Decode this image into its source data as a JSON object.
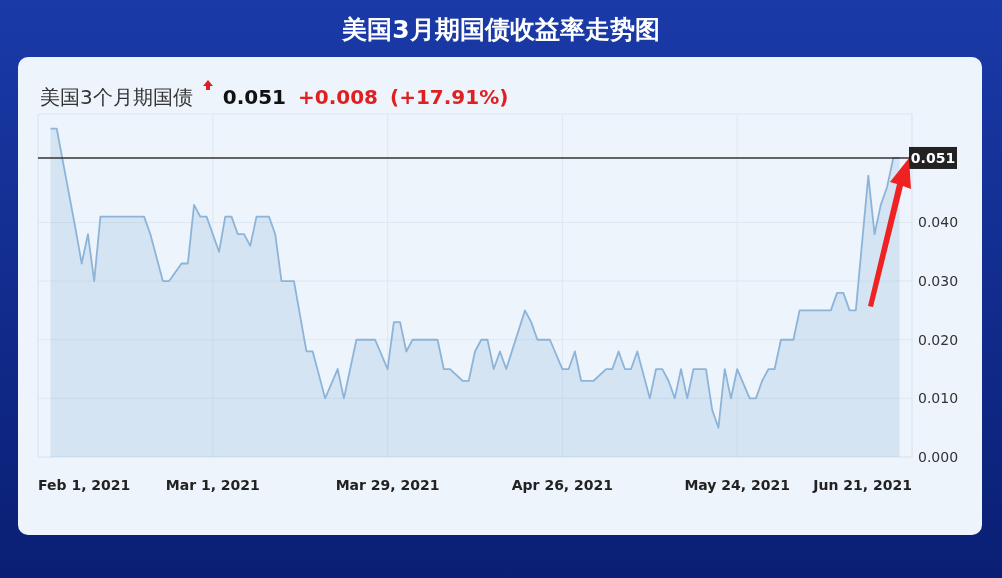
{
  "chart_data": {
    "type": "area",
    "title": "美国3月期国债收益率走势图",
    "subtitle": "美国3个月期国债 0.051 +0.008 (+17.91%)",
    "x": [
      "2021-02-03",
      "2021-02-04",
      "2021-02-07",
      "2021-02-08",
      "2021-02-09",
      "2021-02-10",
      "2021-02-11",
      "2021-02-18",
      "2021-02-19",
      "2021-02-21",
      "2021-02-22",
      "2021-02-24",
      "2021-02-25",
      "2021-02-26",
      "2021-02-27",
      "2021-02-28",
      "2021-03-02",
      "2021-03-03",
      "2021-03-04",
      "2021-03-05",
      "2021-03-06",
      "2021-03-07",
      "2021-03-08",
      "2021-03-10",
      "2021-03-11",
      "2021-03-12",
      "2021-03-14",
      "2021-03-16",
      "2021-03-17",
      "2021-03-19",
      "2021-03-21",
      "2021-03-22",
      "2021-03-24",
      "2021-03-27",
      "2021-03-29",
      "2021-03-30",
      "2021-03-31",
      "2021-04-01",
      "2021-04-02",
      "2021-04-06",
      "2021-04-07",
      "2021-04-08",
      "2021-04-10",
      "2021-04-11",
      "2021-04-12",
      "2021-04-13",
      "2021-04-14",
      "2021-04-15",
      "2021-04-16",
      "2021-04-17",
      "2021-04-20",
      "2021-04-21",
      "2021-04-22",
      "2021-04-24",
      "2021-04-26",
      "2021-04-27",
      "2021-04-28",
      "2021-04-29",
      "2021-05-01",
      "2021-05-03",
      "2021-05-04",
      "2021-05-05",
      "2021-05-06",
      "2021-05-07",
      "2021-05-08",
      "2021-05-10",
      "2021-05-11",
      "2021-05-12",
      "2021-05-13",
      "2021-05-14",
      "2021-05-15",
      "2021-05-16",
      "2021-05-17",
      "2021-05-19",
      "2021-05-20",
      "2021-05-21",
      "2021-05-22",
      "2021-05-23",
      "2021-05-24",
      "2021-05-26",
      "2021-05-27",
      "2021-05-28",
      "2021-05-29",
      "2021-05-30",
      "2021-05-31",
      "2021-06-02",
      "2021-06-03",
      "2021-06-08",
      "2021-06-09",
      "2021-06-10",
      "2021-06-11",
      "2021-06-12",
      "2021-06-14",
      "2021-06-15",
      "2021-06-16",
      "2021-06-17",
      "2021-06-18",
      "2021-06-19"
    ],
    "series": [
      {
        "color": "#8db4d8",
        "values": [
          0.056,
          0.056,
          0.039,
          0.033,
          0.038,
          0.03,
          0.041,
          0.041,
          0.038,
          0.03,
          0.03,
          0.033,
          0.033,
          0.043,
          0.041,
          0.041,
          0.035,
          0.041,
          0.041,
          0.038,
          0.038,
          0.036,
          0.041,
          0.041,
          0.038,
          0.03,
          0.03,
          0.018,
          0.018,
          0.01,
          0.015,
          0.01,
          0.02,
          0.02,
          0.015,
          0.023,
          0.023,
          0.018,
          0.02,
          0.02,
          0.015,
          0.015,
          0.013,
          0.013,
          0.018,
          0.02,
          0.02,
          0.015,
          0.018,
          0.015,
          0.025,
          0.023,
          0.02,
          0.02,
          0.015,
          0.015,
          0.018,
          0.013,
          0.013,
          0.015,
          0.015,
          0.018,
          0.015,
          0.015,
          0.018,
          0.01,
          0.015,
          0.015,
          0.013,
          0.01,
          0.015,
          0.01,
          0.015,
          0.015,
          0.008,
          0.005,
          0.015,
          0.01,
          0.015,
          0.01,
          0.01,
          0.013,
          0.015,
          0.015,
          0.02,
          0.02,
          0.025,
          0.025,
          0.028,
          0.028,
          0.025,
          0.025,
          0.048,
          0.038,
          0.043,
          0.046,
          0.051,
          0.051
        ]
      }
    ],
    "xlim": [
      "2021-02-01",
      "2021-06-21"
    ],
    "xticks": [
      {
        "value": "2021-02-01",
        "label": "Feb 1, 2021"
      },
      {
        "value": "2021-03-01",
        "label": "Mar 1, 2021"
      },
      {
        "value": "2021-03-29",
        "label": "Mar 29, 2021"
      },
      {
        "value": "2021-04-26",
        "label": "Apr 26, 2021"
      },
      {
        "value": "2021-05-24",
        "label": "May 24, 2021"
      },
      {
        "value": "2021-06-21",
        "label": "Jun 21, 2021"
      }
    ],
    "ylim": [
      0,
      0.0585
    ],
    "yticks": [
      {
        "value": 0,
        "label": "0.000"
      },
      {
        "value": 0.01,
        "label": "0.010"
      },
      {
        "value": 0.02,
        "label": "0.020"
      },
      {
        "value": 0.03,
        "label": "0.030"
      },
      {
        "value": 0.04,
        "label": "0.040"
      }
    ],
    "ref_lines": [
      {
        "axis": "y",
        "value": 0.051,
        "label": "0.051",
        "color": "#333333"
      }
    ],
    "grid": true
  }
}
